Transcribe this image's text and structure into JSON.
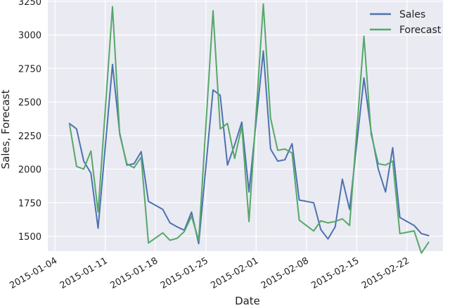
{
  "chart_data": {
    "type": "line",
    "xlabel": "Date",
    "ylabel": "Sales, Forecast",
    "x_axis_type": "date",
    "xlim": [
      "2015-01-03",
      "2015-02-27"
    ],
    "ylim": [
      1390,
      3260
    ],
    "x_ticks": [
      "2015-01-04",
      "2015-01-11",
      "2015-01-18",
      "2015-01-25",
      "2015-02-01",
      "2015-02-08",
      "2015-02-15",
      "2015-02-22"
    ],
    "y_ticks": [
      1500,
      1750,
      2000,
      2250,
      2500,
      2750,
      3000,
      3250
    ],
    "grid": true,
    "background": "#eaeaf2",
    "legend": {
      "placement": "top-right"
    },
    "x": [
      "2015-01-06",
      "2015-01-07",
      "2015-01-08",
      "2015-01-09",
      "2015-01-10",
      "2015-01-12",
      "2015-01-13",
      "2015-01-14",
      "2015-01-15",
      "2015-01-16",
      "2015-01-17",
      "2015-01-19",
      "2015-01-20",
      "2015-01-21",
      "2015-01-22",
      "2015-01-23",
      "2015-01-24",
      "2015-01-26",
      "2015-01-27",
      "2015-01-28",
      "2015-01-29",
      "2015-01-30",
      "2015-01-31",
      "2015-02-02",
      "2015-02-03",
      "2015-02-04",
      "2015-02-05",
      "2015-02-06",
      "2015-02-07",
      "2015-02-09",
      "2015-02-10",
      "2015-02-11",
      "2015-02-12",
      "2015-02-13",
      "2015-02-14",
      "2015-02-16",
      "2015-02-17",
      "2015-02-18",
      "2015-02-19",
      "2015-02-20",
      "2015-02-21",
      "2015-02-23",
      "2015-02-24",
      "2015-02-25"
    ],
    "series": [
      {
        "name": "Sales",
        "color": "#4c72b0",
        "values": [
          2340,
          2300,
          2060,
          1970,
          1560,
          2780,
          2270,
          2030,
          2040,
          2130,
          1760,
          1700,
          1600,
          1570,
          1545,
          1680,
          1445,
          2590,
          2550,
          2030,
          2180,
          2350,
          1830,
          2880,
          2150,
          2060,
          2070,
          2190,
          1770,
          1750,
          1550,
          1480,
          1570,
          1925,
          1700,
          2680,
          2280,
          2000,
          1830,
          2160,
          1640,
          1580,
          1520,
          1505
        ]
      },
      {
        "name": "Forecast",
        "color": "#55a868",
        "values": [
          2340,
          2020,
          2000,
          2135,
          1680,
          3210,
          2260,
          2040,
          2010,
          2090,
          1450,
          1525,
          1470,
          1485,
          1535,
          1650,
          1470,
          3180,
          2300,
          2340,
          2080,
          2320,
          1610,
          3230,
          2380,
          2140,
          2150,
          2120,
          1620,
          1540,
          1615,
          1600,
          1610,
          1630,
          1580,
          2990,
          2260,
          2040,
          2030,
          2060,
          1520,
          1540,
          1375,
          1455
        ]
      }
    ]
  }
}
